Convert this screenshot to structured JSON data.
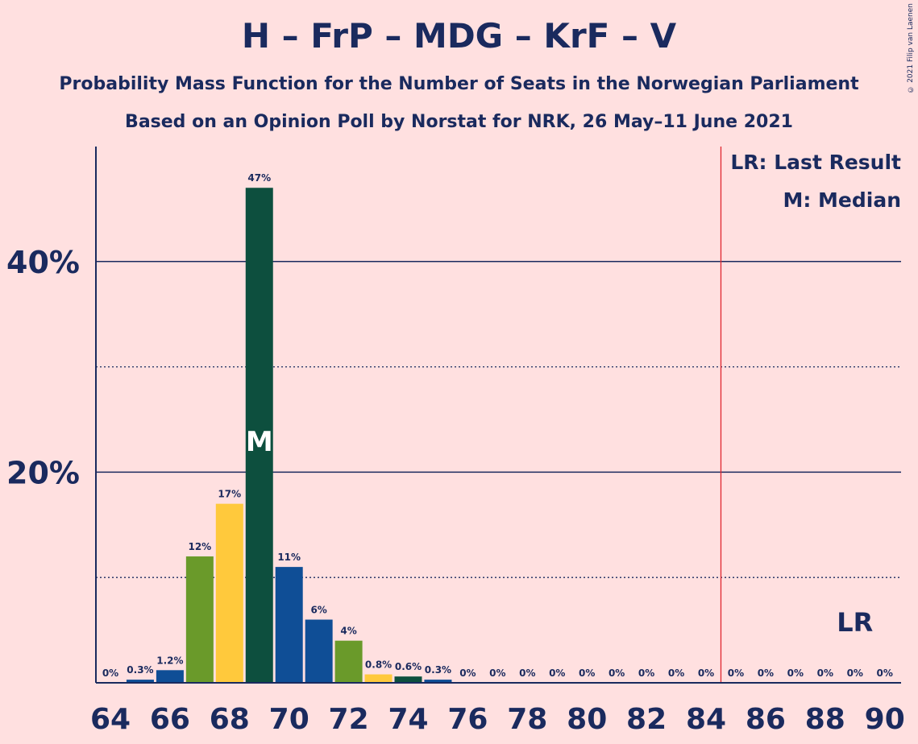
{
  "title": "H – FrP – MDG – KrF – V",
  "subtitle1": "Probability Mass Function for the Number of Seats in the Norwegian Parliament",
  "subtitle2": "Based on an Opinion Poll by Norstat for NRK, 26 May–11 June 2021",
  "copyright": "© 2021 Filip van Laenen",
  "legend": {
    "last_result": "LR: Last Result",
    "median": "M: Median"
  },
  "markers": {
    "median_label": "M",
    "median_seat": 69,
    "last_result_label": "LR",
    "last_result_seat": 89,
    "majority_line_seat": 84.5
  },
  "colors": {
    "background": "#ffe0e0",
    "text": "#1a2a5e",
    "H": "#0f4e96",
    "FrP": "#ffc93c",
    "KrF": "#6a9a2a",
    "MDG": "#0d4f3e",
    "majority_line": "#e0262e"
  },
  "chart_data": {
    "type": "bar",
    "x": [
      64,
      65,
      66,
      67,
      68,
      69,
      70,
      71,
      72,
      73,
      74,
      75,
      76,
      77,
      78,
      79,
      80,
      81,
      82,
      83,
      84,
      85,
      86,
      87,
      88,
      89,
      90
    ],
    "values": [
      0,
      0.3,
      1.2,
      12,
      17,
      47,
      11,
      6,
      4,
      0.8,
      0.6,
      0.3,
      0,
      0,
      0,
      0,
      0,
      0,
      0,
      0,
      0,
      0,
      0,
      0,
      0,
      0,
      0
    ],
    "labels": [
      "0%",
      "0.3%",
      "1.2%",
      "12%",
      "17%",
      "47%",
      "11%",
      "6%",
      "4%",
      "0.8%",
      "0.6%",
      "0.3%",
      "0%",
      "0%",
      "0%",
      "0%",
      "0%",
      "0%",
      "0%",
      "0%",
      "0%",
      "0%",
      "0%",
      "0%",
      "0%",
      "0%",
      "0%"
    ],
    "bar_colors": [
      "#0f4e96",
      "#0f4e96",
      "#0f4e96",
      "#6a9a2a",
      "#ffc93c",
      "#0d4f3e",
      "#0f4e96",
      "#0f4e96",
      "#6a9a2a",
      "#ffc93c",
      "#0d4f3e",
      "#0f4e96",
      "#0f4e96",
      "#0f4e96",
      "#0f4e96",
      "#0f4e96",
      "#0f4e96",
      "#0f4e96",
      "#0f4e96",
      "#0f4e96",
      "#0f4e96",
      "#0f4e96",
      "#0f4e96",
      "#0f4e96",
      "#0f4e96",
      "#0f4e96",
      "#0f4e96"
    ],
    "x_tick_labels": [
      "64",
      "66",
      "68",
      "70",
      "72",
      "74",
      "76",
      "78",
      "80",
      "82",
      "84",
      "86",
      "88",
      "90"
    ],
    "y_tick_labels": [
      "20%",
      "40%"
    ],
    "y_major_grid": [
      20,
      40
    ],
    "y_minor_grid": [
      10,
      30
    ],
    "ylim": [
      0,
      50
    ],
    "xlabel": "",
    "ylabel": "",
    "grid": true,
    "legend_position": "top-right"
  }
}
